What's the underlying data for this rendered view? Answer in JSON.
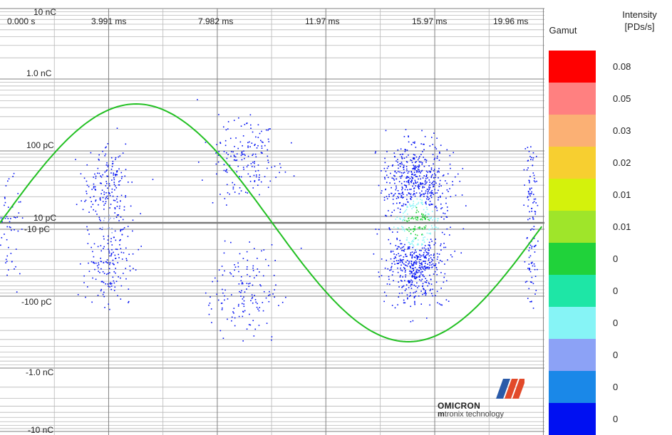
{
  "chart_data": {
    "type": "scatter",
    "title": "",
    "x_axis": {
      "unit": "ms",
      "range": [
        0,
        20
      ],
      "tick_values": [
        0,
        3.991,
        7.982,
        11.97,
        15.97,
        19.96
      ],
      "tick_labels": [
        "0.000 s",
        "3.991 ms",
        "7.982 ms",
        "11.97 ms",
        "15.97 ms",
        "19.96 ms"
      ]
    },
    "y_axis": {
      "scale": "symmetric-log",
      "unit": "C",
      "range": [
        -1e-08,
        1e-08
      ],
      "tick_labels": [
        "10 nC",
        "1.0 nC",
        "100 pC",
        "10 pC",
        "-10 pC",
        "-100 pC",
        "-1.0 nC",
        "-10 nC"
      ],
      "grid": true
    },
    "reference_sine": {
      "color": "#22c022",
      "positive_peak_ms": 5.0,
      "negative_peak_ms": 15.0,
      "peak_level_C": 4.5e-10
    },
    "clusters": [
      {
        "x_center_ms": 4.0,
        "y_center_C": 0,
        "x_spread_ms": 0.8,
        "y_spread_C": 3e-11,
        "count": 350
      },
      {
        "x_center_ms": 9.0,
        "y_center_C": 0,
        "x_spread_ms": 1.2,
        "y_spread_C": 8e-11,
        "count": 320
      },
      {
        "x_center_ms": 15.3,
        "y_center_C": 0,
        "x_spread_ms": 1.0,
        "y_spread_C": 3e-11,
        "count": 1100
      },
      {
        "x_center_ms": 19.5,
        "y_center_C": 0,
        "x_spread_ms": 0.2,
        "y_spread_C": 3e-11,
        "count": 120
      },
      {
        "x_center_ms": 0.4,
        "y_center_C": 0,
        "x_spread_ms": 0.4,
        "y_spread_C": 2e-11,
        "count": 60
      }
    ],
    "legend": {
      "placement": "right",
      "gamut_label": "Gamut",
      "intensity_label": "Intensity [PDs/s]",
      "colors": [
        "#ff0000",
        "#ff8080",
        "#fbb074",
        "#f7cf30",
        "#d4f20c",
        "#9fe52a",
        "#20d23a",
        "#1ee6a6",
        "#86f4f6",
        "#8ca2f6",
        "#1a88e8",
        "#0010f2"
      ],
      "values": [
        "0.08",
        "0.05",
        "0.03",
        "0.02",
        "0.01",
        "0.01",
        "0",
        "0",
        "0",
        "0",
        "0",
        "0"
      ]
    }
  },
  "legend_ui": {
    "gamut_title": "Gamut",
    "intensity_line1": "Intensity",
    "intensity_line2": "[PDs/s]"
  },
  "logo": {
    "name": "OMICRON",
    "sub_prefix": "m",
    "sub_rest": "tronix technology"
  },
  "colors": {
    "grid_major": "#808080",
    "grid_minor": "#b8b8b8",
    "zero_line": "#7a7a7a",
    "sine": "#22c022"
  }
}
